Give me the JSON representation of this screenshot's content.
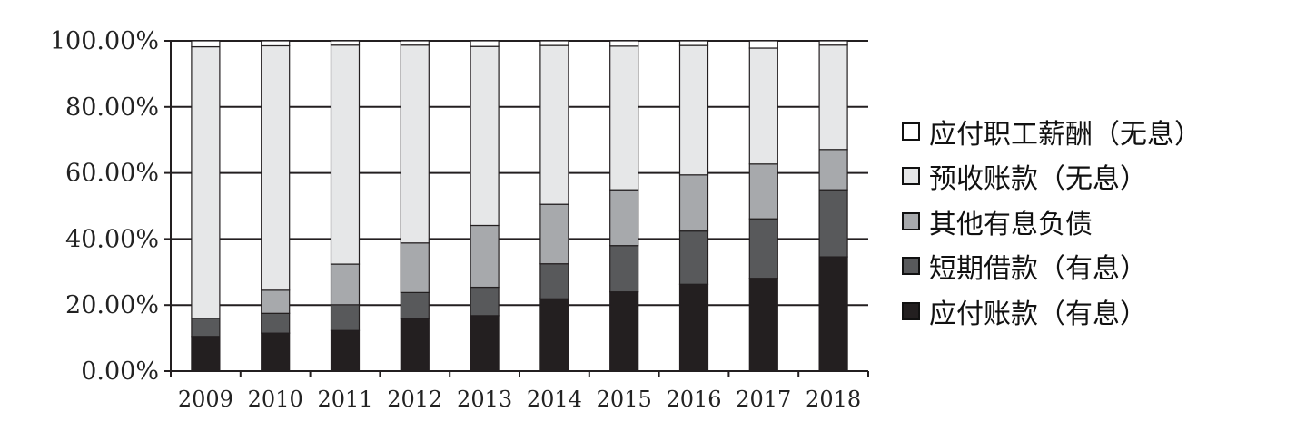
{
  "chart_data": {
    "type": "bar",
    "stacked": true,
    "categories": [
      "2009",
      "2010",
      "2011",
      "2012",
      "2013",
      "2014",
      "2015",
      "2016",
      "2017",
      "2018"
    ],
    "series": [
      {
        "name": "应付账款（有息）",
        "color": "#231f20",
        "values": [
          10.5,
          11.5,
          12.3,
          15.9,
          16.8,
          21.9,
          24.0,
          26.3,
          28.1,
          34.6
        ]
      },
      {
        "name": "短期借款（有息）",
        "color": "#58595b",
        "values": [
          5.5,
          6.0,
          7.8,
          7.9,
          8.6,
          10.6,
          14.0,
          16.1,
          18.0,
          20.3
        ]
      },
      {
        "name": "其他有息负债",
        "color": "#a7a9ac",
        "values": [
          0.0,
          7.0,
          12.3,
          15.0,
          18.7,
          18.0,
          16.9,
          17.0,
          16.6,
          12.2
        ]
      },
      {
        "name": "预收账款（无息）",
        "color": "#e6e7e8",
        "values": [
          82.2,
          74.0,
          66.3,
          59.9,
          54.2,
          48.1,
          43.5,
          39.2,
          35.1,
          31.6
        ]
      },
      {
        "name": "应付职工薪酬（无息）",
        "color": "#ffffff",
        "values": [
          1.8,
          1.5,
          1.3,
          1.3,
          1.7,
          1.4,
          1.6,
          1.4,
          2.2,
          1.3
        ]
      }
    ],
    "ylim": [
      0,
      100
    ],
    "yticks": [
      0,
      20,
      40,
      60,
      80,
      100
    ],
    "ytick_labels": [
      "0.00%",
      "20.00%",
      "40.00%",
      "60.00%",
      "80.00%",
      "100.00%"
    ],
    "title": "",
    "xlabel": "",
    "ylabel": "",
    "grid": true,
    "legend_position": "right",
    "legend_order": [
      "应付职工薪酬（无息）",
      "预收账款（无息）",
      "其他有息负债",
      "短期借款（有息）",
      "应付账款（有息）"
    ]
  }
}
